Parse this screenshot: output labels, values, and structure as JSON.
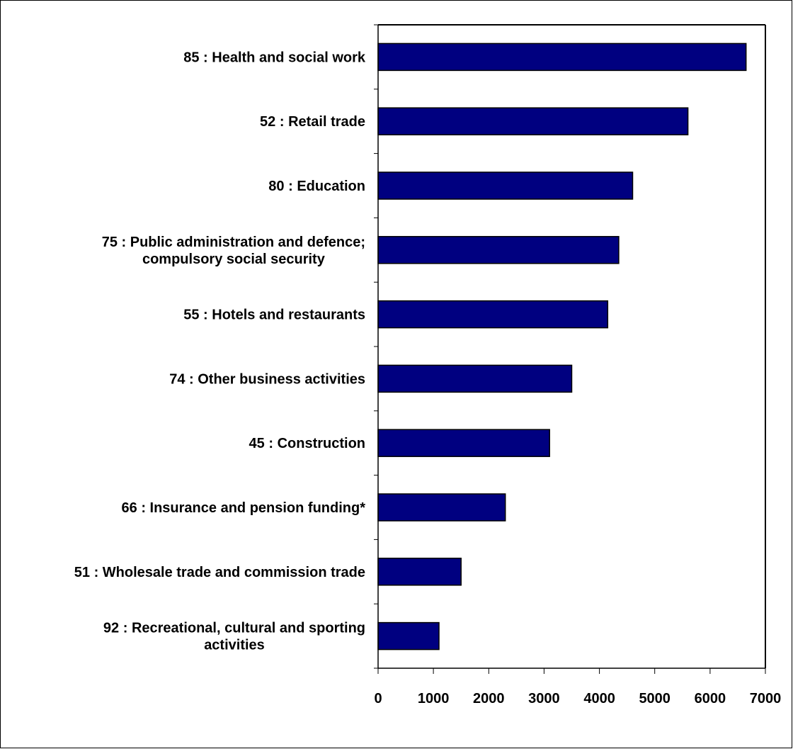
{
  "chart_data": {
    "type": "bar",
    "orientation": "horizontal",
    "title": "",
    "xlabel": "",
    "ylabel": "",
    "categories": [
      "85 : Health and social work",
      "52 : Retail trade",
      "80 : Education",
      "75 : Public administration and defence; compulsory social security",
      "55 : Hotels and restaurants",
      "74 : Other business activities",
      "45 : Construction",
      "66 : Insurance and pension funding*",
      "51 : Wholesale trade and commission trade",
      "92 : Recreational, cultural and sporting activities"
    ],
    "category_label_lines": [
      [
        "85 : Health and social work"
      ],
      [
        "52 : Retail trade"
      ],
      [
        "80 : Education"
      ],
      [
        "75 : Public administration and defence;",
        "compulsory social security"
      ],
      [
        "55 : Hotels and restaurants"
      ],
      [
        "74 : Other business activities"
      ],
      [
        "45 : Construction"
      ],
      [
        "66 : Insurance and pension funding*"
      ],
      [
        "51 : Wholesale trade and commission trade"
      ],
      [
        "92 : Recreational, cultural and sporting",
        "activities"
      ]
    ],
    "values": [
      6650,
      5600,
      4600,
      4350,
      4150,
      3500,
      3100,
      2300,
      1500,
      1100
    ],
    "xlim": [
      0,
      7000
    ],
    "x_ticks": [
      0,
      1000,
      2000,
      3000,
      4000,
      5000,
      6000,
      7000
    ],
    "x_tick_labels": [
      "0",
      "1000",
      "2000",
      "3000",
      "4000",
      "5000",
      "6000",
      "7000"
    ],
    "grid": false,
    "legend": "none",
    "bar_color": "#000080",
    "bar_edge_color": "#000000"
  }
}
